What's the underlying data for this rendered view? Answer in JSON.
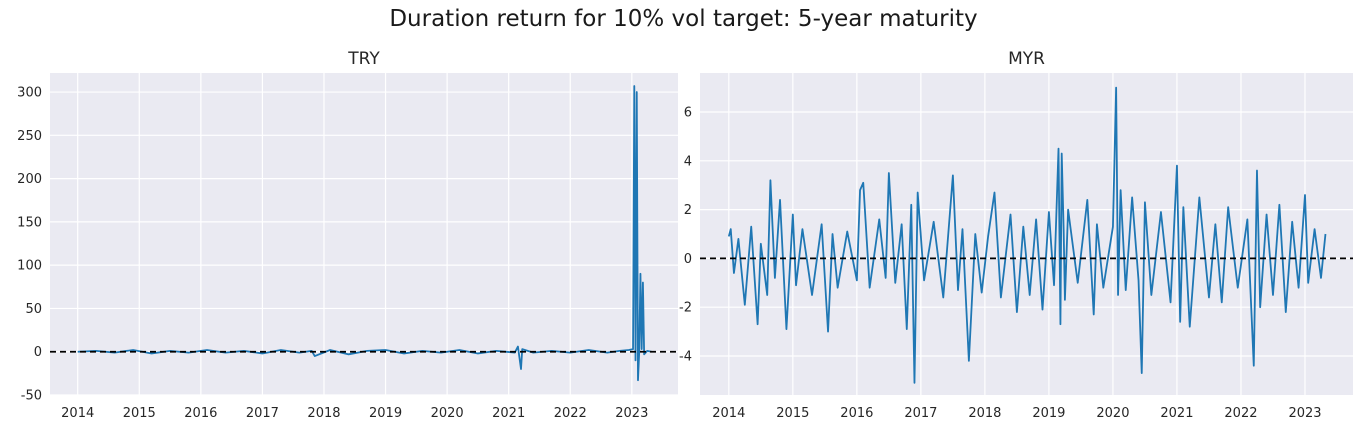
{
  "figure": {
    "title": "Duration return for 10% vol target: 5-year maturity"
  },
  "colors": {
    "background": "#eaeaf2",
    "grid": "#ffffff",
    "series": "#1f77b4",
    "zero_line": "#000000"
  },
  "chart_data": [
    {
      "type": "line",
      "title": "TRY",
      "xlabel": "",
      "ylabel": "",
      "x_range": [
        2013.55,
        2023.75
      ],
      "ylim": [
        -50,
        322
      ],
      "x_ticks": [
        2014,
        2015,
        2016,
        2017,
        2018,
        2019,
        2020,
        2021,
        2022,
        2023
      ],
      "y_ticks": [
        -50,
        0,
        50,
        100,
        150,
        200,
        250,
        300
      ],
      "grid": true,
      "reference_line": {
        "y": 0,
        "style": "dashed",
        "color": "#000000"
      },
      "series": [
        {
          "x": [
            2014.0,
            2014.3,
            2014.6,
            2014.9,
            2015.2,
            2015.5,
            2015.8,
            2016.1,
            2016.4,
            2016.7,
            2017.0,
            2017.3,
            2017.6,
            2017.8,
            2017.85,
            2018.1,
            2018.4,
            2018.7,
            2019.0,
            2019.3,
            2019.6,
            2019.9,
            2020.2,
            2020.5,
            2020.8,
            2021.1,
            2021.15,
            2021.2,
            2021.22,
            2021.4,
            2021.7,
            2022.0,
            2022.3,
            2022.6,
            2022.8,
            2022.95,
            2023.02,
            2023.04,
            2023.06,
            2023.08,
            2023.1,
            2023.12,
            2023.14,
            2023.16,
            2023.18,
            2023.2,
            2023.25,
            2023.32
          ],
          "y": [
            0,
            1,
            -1,
            2,
            -2,
            1,
            -1,
            2,
            -1,
            1,
            -2,
            2,
            -1,
            1,
            -5,
            2,
            -3,
            1,
            2,
            -2,
            1,
            -1,
            2,
            -2,
            1,
            -1,
            6,
            -20,
            3,
            -1,
            1,
            -1,
            2,
            -1,
            1,
            2,
            3,
            307,
            -10,
            300,
            -33,
            0,
            90,
            3,
            80,
            -3,
            1,
            0
          ]
        }
      ]
    },
    {
      "type": "line",
      "title": "MYR",
      "xlabel": "",
      "ylabel": "",
      "x_range": [
        2013.55,
        2023.75
      ],
      "ylim": [
        -5.6,
        7.6
      ],
      "x_ticks": [
        2014,
        2015,
        2016,
        2017,
        2018,
        2019,
        2020,
        2021,
        2022,
        2023
      ],
      "y_ticks": [
        -4,
        -2,
        0,
        2,
        4,
        6
      ],
      "grid": true,
      "reference_line": {
        "y": 0,
        "style": "dashed",
        "color": "#000000"
      },
      "series": [
        {
          "x": [
            2014.0,
            2014.03,
            2014.08,
            2014.15,
            2014.25,
            2014.35,
            2014.45,
            2014.5,
            2014.6,
            2014.65,
            2014.72,
            2014.8,
            2014.9,
            2015.0,
            2015.05,
            2015.15,
            2015.3,
            2015.45,
            2015.55,
            2015.62,
            2015.7,
            2015.85,
            2016.0,
            2016.05,
            2016.1,
            2016.2,
            2016.35,
            2016.45,
            2016.5,
            2016.6,
            2016.7,
            2016.78,
            2016.85,
            2016.9,
            2016.95,
            2017.05,
            2017.2,
            2017.35,
            2017.5,
            2017.58,
            2017.65,
            2017.75,
            2017.85,
            2017.95,
            2018.05,
            2018.15,
            2018.25,
            2018.4,
            2018.5,
            2018.6,
            2018.7,
            2018.8,
            2018.9,
            2019.0,
            2019.08,
            2019.15,
            2019.18,
            2019.2,
            2019.23,
            2019.25,
            2019.3,
            2019.45,
            2019.6,
            2019.7,
            2019.75,
            2019.85,
            2020.0,
            2020.05,
            2020.08,
            2020.12,
            2020.2,
            2020.3,
            2020.4,
            2020.45,
            2020.5,
            2020.6,
            2020.75,
            2020.9,
            2021.0,
            2021.05,
            2021.1,
            2021.2,
            2021.35,
            2021.5,
            2021.6,
            2021.7,
            2021.8,
            2021.95,
            2022.1,
            2022.2,
            2022.25,
            2022.3,
            2022.4,
            2022.5,
            2022.6,
            2022.7,
            2022.8,
            2022.9,
            2023.0,
            2023.05,
            2023.15,
            2023.25,
            2023.32
          ],
          "y": [
            0.9,
            1.2,
            -0.6,
            0.8,
            -1.9,
            1.3,
            -2.7,
            0.6,
            -1.5,
            3.2,
            -0.8,
            2.4,
            -2.9,
            1.8,
            -1.1,
            1.2,
            -1.5,
            1.4,
            -3.0,
            1.0,
            -1.2,
            1.1,
            -0.9,
            2.8,
            3.1,
            -1.2,
            1.6,
            -0.8,
            3.5,
            -1.0,
            1.4,
            -2.9,
            2.2,
            -5.1,
            2.7,
            -0.9,
            1.5,
            -1.6,
            3.4,
            -1.3,
            1.2,
            -4.2,
            1.0,
            -1.4,
            0.9,
            2.7,
            -1.6,
            1.8,
            -2.2,
            1.3,
            -1.5,
            1.6,
            -2.1,
            1.9,
            -1.1,
            4.5,
            -2.7,
            4.3,
            1.2,
            -1.7,
            2.0,
            -1.0,
            2.4,
            -2.3,
            1.4,
            -1.2,
            1.3,
            7.0,
            -1.5,
            2.8,
            -1.3,
            2.5,
            -0.9,
            -4.7,
            2.3,
            -1.5,
            1.9,
            -1.8,
            3.8,
            -2.6,
            2.1,
            -2.8,
            2.5,
            -1.6,
            1.4,
            -1.8,
            2.1,
            -1.2,
            1.6,
            -4.4,
            3.6,
            -2.0,
            1.8,
            -1.5,
            2.2,
            -2.2,
            1.5,
            -1.2,
            2.6,
            -1.0,
            1.2,
            -0.8,
            1.0
          ]
        }
      ]
    }
  ]
}
